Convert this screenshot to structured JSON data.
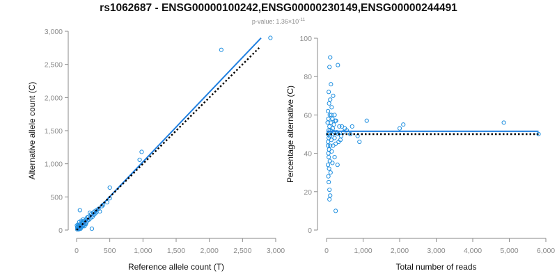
{
  "header": {
    "title": "rs1062687 - ENSG00000100242,ENSG00000230149,ENSG00000244491",
    "pvalue_label": "p-value: 1.36×10",
    "pvalue_exponent": "-11"
  },
  "colors": {
    "points": "#1f8fe0",
    "fit_line": "#1f7fe0",
    "reference_line": "#000000"
  },
  "chart_data": [
    {
      "type": "scatter",
      "xlabel": "Reference allele count (T)",
      "ylabel": "Alternative allele count (C)",
      "xlim": [
        0,
        3000
      ],
      "ylim": [
        0,
        3000
      ],
      "xticks": [
        0,
        500,
        1000,
        1500,
        2000,
        2500,
        3000
      ],
      "yticks": [
        0,
        500,
        1000,
        1500,
        2000,
        2500,
        3000
      ],
      "xtick_labels": [
        "0",
        "500",
        "1,000",
        "1,500",
        "2,000",
        "2,500",
        "3,000"
      ],
      "ytick_labels": [
        "0",
        "500",
        "1,000",
        "1,500",
        "2,000",
        "2,500",
        "3,000"
      ],
      "points": [
        [
          2180,
          2720
        ],
        [
          2920,
          2900
        ],
        [
          980,
          1180
        ],
        [
          950,
          1060
        ],
        [
          500,
          640
        ],
        [
          500,
          480
        ],
        [
          460,
          420
        ],
        [
          380,
          360
        ],
        [
          330,
          320
        ],
        [
          300,
          300
        ],
        [
          270,
          280
        ],
        [
          250,
          260
        ],
        [
          220,
          240
        ],
        [
          200,
          260
        ],
        [
          180,
          200
        ],
        [
          160,
          190
        ],
        [
          140,
          160
        ],
        [
          120,
          140
        ],
        [
          100,
          130
        ],
        [
          90,
          110
        ],
        [
          80,
          100
        ],
        [
          60,
          90
        ],
        [
          50,
          300
        ],
        [
          40,
          60
        ],
        [
          30,
          40
        ],
        [
          20,
          20
        ],
        [
          10,
          10
        ],
        [
          15,
          50
        ],
        [
          25,
          30
        ],
        [
          35,
          70
        ],
        [
          45,
          20
        ],
        [
          55,
          60
        ],
        [
          65,
          40
        ],
        [
          75,
          80
        ],
        [
          85,
          120
        ],
        [
          95,
          60
        ],
        [
          110,
          80
        ],
        [
          130,
          100
        ],
        [
          150,
          120
        ],
        [
          170,
          150
        ],
        [
          190,
          160
        ],
        [
          210,
          180
        ],
        [
          230,
          20
        ],
        [
          240,
          200
        ],
        [
          260,
          230
        ],
        [
          280,
          250
        ],
        [
          300,
          270
        ],
        [
          350,
          280
        ],
        [
          400,
          380
        ],
        [
          20,
          80
        ],
        [
          30,
          10
        ],
        [
          40,
          120
        ],
        [
          60,
          20
        ],
        [
          70,
          140
        ],
        [
          80,
          50
        ],
        [
          100,
          160
        ],
        [
          120,
          60
        ],
        [
          140,
          90
        ],
        [
          10,
          40
        ],
        [
          5,
          70
        ]
      ],
      "series": [
        {
          "name": "",
          "kind": "fit",
          "style": "solid",
          "x": [
            20,
            2780
          ],
          "y": [
            0,
            2900
          ]
        },
        {
          "name": "",
          "kind": "reference",
          "style": "dotted",
          "x": [
            0,
            2750
          ],
          "y": [
            0,
            2750
          ]
        }
      ],
      "grid": false
    },
    {
      "type": "scatter",
      "xlabel": "Total number of reads",
      "ylabel": "Percentage alternative (C)",
      "xlim": [
        0,
        6000
      ],
      "ylim": [
        0,
        100
      ],
      "xticks": [
        0,
        1000,
        2000,
        3000,
        4000,
        5000,
        6000
      ],
      "yticks": [
        0,
        20,
        40,
        60,
        80,
        100
      ],
      "xtick_labels": [
        "0",
        "1,000",
        "2,000",
        "3,000",
        "4,000",
        "5,000",
        "6,000"
      ],
      "ytick_labels": [
        "0",
        "20",
        "40",
        "60",
        "80",
        "100"
      ],
      "points": [
        [
          100,
          90
        ],
        [
          80,
          85
        ],
        [
          310,
          86
        ],
        [
          120,
          76
        ],
        [
          60,
          72
        ],
        [
          180,
          70
        ],
        [
          100,
          68
        ],
        [
          70,
          66
        ],
        [
          140,
          64
        ],
        [
          40,
          62
        ],
        [
          220,
          60
        ],
        [
          90,
          60
        ],
        [
          160,
          58
        ],
        [
          50,
          58
        ],
        [
          260,
          57
        ],
        [
          120,
          56
        ],
        [
          30,
          56
        ],
        [
          200,
          55
        ],
        [
          80,
          54
        ],
        [
          350,
          54
        ],
        [
          420,
          54
        ],
        [
          500,
          53
        ],
        [
          110,
          52
        ],
        [
          60,
          52
        ],
        [
          280,
          51
        ],
        [
          150,
          50
        ],
        [
          40,
          50
        ],
        [
          320,
          50
        ],
        [
          90,
          49
        ],
        [
          220,
          48
        ],
        [
          60,
          48
        ],
        [
          130,
          47
        ],
        [
          380,
          47
        ],
        [
          40,
          46
        ],
        [
          250,
          45
        ],
        [
          100,
          44
        ],
        [
          180,
          44
        ],
        [
          70,
          42
        ],
        [
          140,
          41
        ],
        [
          50,
          40
        ],
        [
          220,
          38
        ],
        [
          90,
          36
        ],
        [
          160,
          35
        ],
        [
          40,
          34
        ],
        [
          300,
          34
        ],
        [
          70,
          32
        ],
        [
          110,
          30
        ],
        [
          50,
          28
        ],
        [
          60,
          25
        ],
        [
          80,
          21
        ],
        [
          100,
          18
        ],
        [
          80,
          16
        ],
        [
          250,
          10
        ],
        [
          40,
          44
        ],
        [
          60,
          38
        ],
        [
          130,
          60
        ],
        [
          170,
          53
        ],
        [
          210,
          51
        ],
        [
          240,
          57
        ],
        [
          330,
          46
        ],
        [
          400,
          49
        ],
        [
          460,
          51
        ],
        [
          550,
          52
        ],
        [
          650,
          50
        ],
        [
          700,
          54
        ],
        [
          850,
          49
        ],
        [
          900,
          46
        ],
        [
          1100,
          57
        ],
        [
          2000,
          53
        ],
        [
          2100,
          55
        ],
        [
          4850,
          56
        ],
        [
          5800,
          50
        ]
      ],
      "series": [
        {
          "name": "",
          "kind": "fit",
          "style": "solid",
          "x": [
            0,
            5800
          ],
          "y": [
            51.5,
            51.5
          ]
        },
        {
          "name": "",
          "kind": "reference",
          "style": "dotted",
          "x": [
            0,
            5800
          ],
          "y": [
            50,
            50
          ]
        }
      ],
      "grid": false
    }
  ]
}
